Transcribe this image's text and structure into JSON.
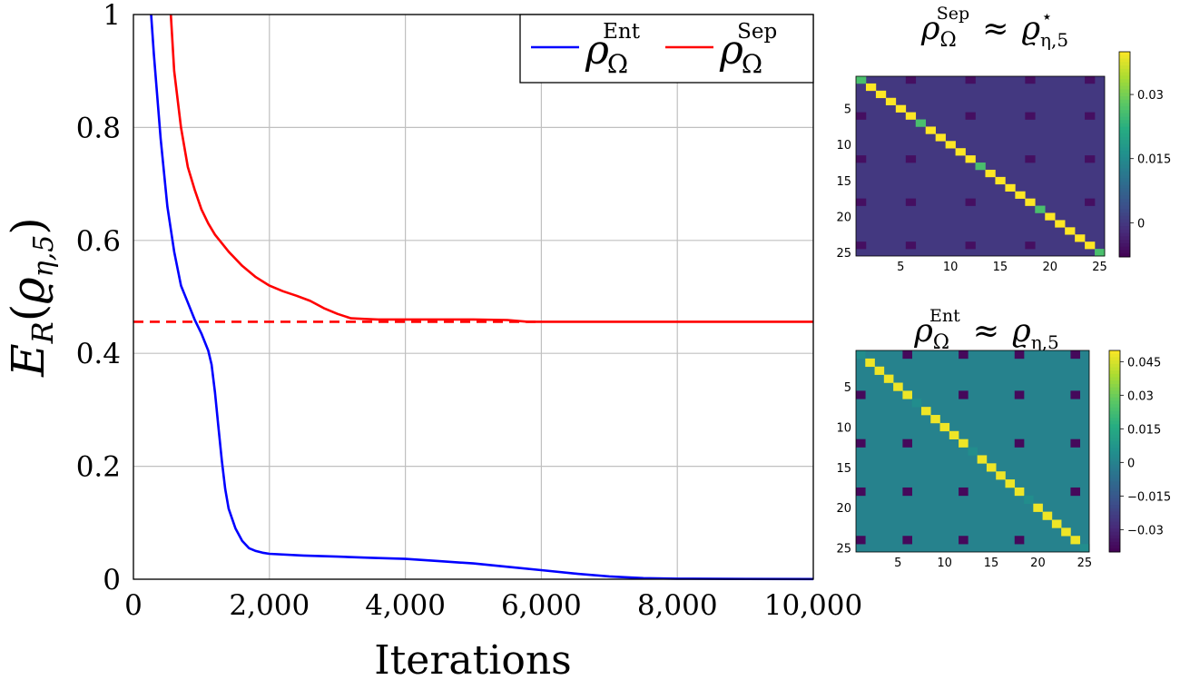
{
  "chart_data": [
    {
      "type": "line",
      "xlabel": "Iterations",
      "ylabel": {
        "main": "E",
        "sub": "R",
        "arg": "ϱ",
        "arg_sub": "η,5"
      },
      "xlim": [
        0,
        10000
      ],
      "ylim": [
        0,
        1
      ],
      "x_ticks": [
        0,
        2000,
        4000,
        6000,
        8000,
        10000
      ],
      "x_tick_labels": [
        "0",
        "2,000",
        "4,000",
        "6,000",
        "8,000",
        "10,000"
      ],
      "y_ticks": [
        0,
        0.2,
        0.4,
        0.6,
        0.8,
        1
      ],
      "y_tick_labels": [
        "0",
        "0.2",
        "0.4",
        "0.6",
        "0.8",
        "1"
      ],
      "grid": true,
      "legend_position": "top-right",
      "series": [
        {
          "name": "ρΩEnt",
          "legend": {
            "base": "ρ",
            "sub": "Ω",
            "sup": "Ent"
          },
          "color": "#0000ff",
          "style": "solid",
          "x": [
            260,
            300,
            400,
            500,
            600,
            700,
            800,
            900,
            1000,
            1100,
            1150,
            1200,
            1250,
            1300,
            1350,
            1400,
            1500,
            1600,
            1700,
            1800,
            1900,
            2000,
            2500,
            3000,
            3500,
            4000,
            4500,
            5000,
            5500,
            6000,
            6500,
            7000,
            7500,
            8000,
            9000,
            10000
          ],
          "y": [
            1.0,
            0.93,
            0.78,
            0.66,
            0.58,
            0.52,
            0.49,
            0.46,
            0.435,
            0.405,
            0.38,
            0.33,
            0.27,
            0.21,
            0.16,
            0.125,
            0.09,
            0.068,
            0.055,
            0.05,
            0.047,
            0.045,
            0.042,
            0.04,
            0.038,
            0.036,
            0.032,
            0.028,
            0.022,
            0.016,
            0.01,
            0.005,
            0.002,
            0.001,
            0.0005,
            0.0003
          ]
        },
        {
          "name": "ρΩSep",
          "legend": {
            "base": "ρ",
            "sub": "Ω",
            "sup": "Sep"
          },
          "color": "#ff0000",
          "style": "solid",
          "x": [
            550,
            600,
            700,
            800,
            900,
            1000,
            1100,
            1200,
            1400,
            1600,
            1800,
            2000,
            2200,
            2400,
            2600,
            2800,
            3000,
            3200,
            3400,
            3600,
            4000,
            5000,
            5500,
            5800,
            6000,
            7000,
            8000,
            9000,
            10000
          ],
          "y": [
            1.0,
            0.9,
            0.8,
            0.73,
            0.69,
            0.655,
            0.63,
            0.61,
            0.58,
            0.555,
            0.535,
            0.52,
            0.51,
            0.502,
            0.493,
            0.48,
            0.47,
            0.462,
            0.461,
            0.46,
            0.46,
            0.46,
            0.459,
            0.456,
            0.456,
            0.456,
            0.456,
            0.456,
            0.456
          ]
        },
        {
          "name": "reference",
          "color": "#ff0000",
          "style": "dashed",
          "x": [
            0,
            6000
          ],
          "y": [
            0.456,
            0.456
          ]
        }
      ]
    },
    {
      "type": "heatmap",
      "title": {
        "lhs": "ρ",
        "lhs_sub": "Ω",
        "lhs_sup": "Sep",
        "approx": "≈",
        "rhs": "ϱ",
        "rhs_sub": "η,5",
        "rhs_sup": "⋆"
      },
      "size": 25,
      "axis_ticks": [
        5,
        10,
        15,
        20,
        25
      ],
      "colorbar_ticks": [
        0.03,
        0.015,
        0
      ],
      "colorbar_tick_labels": [
        "0.03",
        "0.015",
        "0"
      ],
      "vmin": -0.008,
      "vmax": 0.04,
      "background_value": 0.0,
      "diagonal_value": 0.04,
      "diagonal_special": [
        1,
        7,
        13,
        19,
        25
      ],
      "diagonal_special_value": 0.026,
      "negative_entries": [
        [
          1,
          6
        ],
        [
          1,
          12
        ],
        [
          1,
          18
        ],
        [
          1,
          24
        ],
        [
          6,
          1
        ],
        [
          6,
          12
        ],
        [
          6,
          18
        ],
        [
          6,
          24
        ],
        [
          12,
          1
        ],
        [
          12,
          6
        ],
        [
          12,
          18
        ],
        [
          12,
          24
        ],
        [
          18,
          1
        ],
        [
          18,
          6
        ],
        [
          18,
          12
        ],
        [
          18,
          24
        ],
        [
          24,
          1
        ],
        [
          24,
          6
        ],
        [
          24,
          12
        ],
        [
          24,
          18
        ]
      ],
      "negative_value": -0.006
    },
    {
      "type": "heatmap",
      "title": {
        "lhs": "ρ",
        "lhs_sub": "Ω",
        "lhs_sup": "Ent",
        "approx": "≈",
        "rhs": "ϱ",
        "rhs_sub": "η,5",
        "rhs_sup": ""
      },
      "size": 25,
      "axis_ticks": [
        5,
        10,
        15,
        20,
        25
      ],
      "colorbar_ticks": [
        0.045,
        0.03,
        0.015,
        0,
        -0.015,
        -0.03
      ],
      "colorbar_tick_labels": [
        "0.045",
        "0.03",
        "0.015",
        "0",
        "−0.015",
        "−0.03"
      ],
      "vmin": -0.04,
      "vmax": 0.05,
      "background_value": 0.0,
      "diagonal_value": 0.048,
      "diagonal_special": [
        1,
        7,
        13,
        19,
        25
      ],
      "diagonal_special_value": 0.004,
      "negative_entries": [
        [
          1,
          6
        ],
        [
          1,
          12
        ],
        [
          1,
          18
        ],
        [
          1,
          24
        ],
        [
          6,
          1
        ],
        [
          6,
          12
        ],
        [
          6,
          18
        ],
        [
          6,
          24
        ],
        [
          12,
          1
        ],
        [
          12,
          6
        ],
        [
          12,
          18
        ],
        [
          12,
          24
        ],
        [
          18,
          1
        ],
        [
          18,
          6
        ],
        [
          18,
          12
        ],
        [
          18,
          24
        ],
        [
          24,
          1
        ],
        [
          24,
          6
        ],
        [
          24,
          12
        ],
        [
          24,
          18
        ]
      ],
      "negative_value": -0.038
    }
  ]
}
